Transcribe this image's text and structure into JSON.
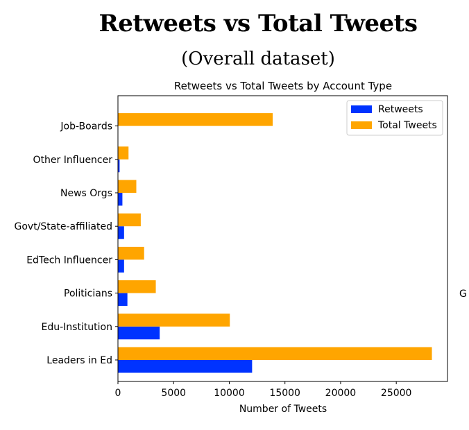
{
  "slide": {
    "title": "Retweets vs Total Tweets",
    "subtitle": "(Overall dataset)",
    "stray_text": "G"
  },
  "chart_data": {
    "type": "bar",
    "orientation": "horizontal",
    "title": "Retweets vs Total Tweets by Account Type",
    "xlabel": "Number of Tweets",
    "ylabel": "",
    "categories": [
      "Leaders in Ed",
      "Edu-Institution",
      "Politicians",
      "EdTech Influencer",
      "Govt/State-affiliated",
      "News Orgs",
      "Other Influencer",
      "Job-Boards"
    ],
    "series": [
      {
        "name": "Retweets",
        "color": "#0033ff",
        "values": [
          12050,
          3750,
          850,
          550,
          550,
          400,
          150,
          0
        ]
      },
      {
        "name": "Total Tweets",
        "color": "#ffa500",
        "values": [
          28200,
          10050,
          3400,
          2350,
          2050,
          1650,
          950,
          13900
        ]
      }
    ],
    "xlim": [
      0,
      29600
    ],
    "xticks": [
      0,
      5000,
      10000,
      15000,
      20000,
      25000
    ],
    "grid": false,
    "legend_position": "top-right"
  }
}
